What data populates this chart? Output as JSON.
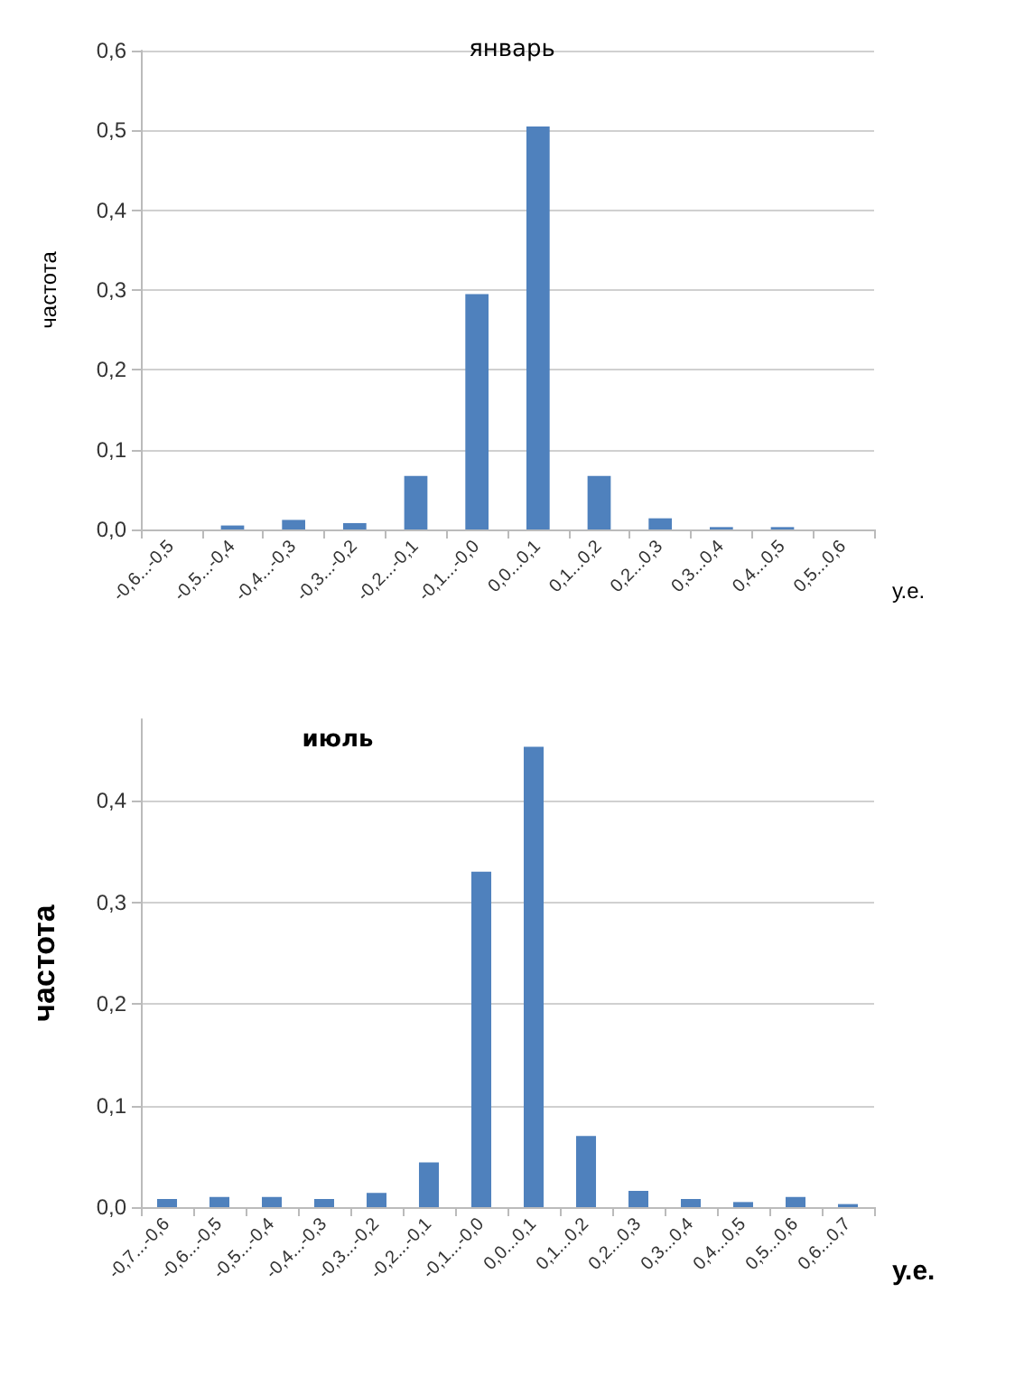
{
  "chart_data": [
    {
      "type": "bar",
      "title": "январь",
      "xlabel": "у.е.",
      "ylabel": "частота",
      "categories": [
        "-0,6...-0,5",
        "-0,5...-0,4",
        "-0,4...-0,3",
        "-0,3...-0,2",
        "-0,2...-0,1",
        "-0,1...-0,0",
        "0,0...0,1",
        "0,1...0,2",
        "0,2...0,3",
        "0,3...0,4",
        "0,4...0,5",
        "0,5...0,6"
      ],
      "values": [
        0,
        0.005,
        0.012,
        0.008,
        0.067,
        0.295,
        0.505,
        0.067,
        0.014,
        0.003,
        0.003,
        0
      ],
      "color": "#4f81bd",
      "ylim": [
        0,
        0.6
      ],
      "yticks": [
        {
          "value": 0,
          "label": "0,0"
        },
        {
          "value": 0.1,
          "label": "0,1"
        },
        {
          "value": 0.2,
          "label": "0,2"
        },
        {
          "value": 0.3,
          "label": "0,3"
        },
        {
          "value": 0.4,
          "label": "0,4"
        },
        {
          "value": 0.5,
          "label": "0,5"
        },
        {
          "value": 0.6,
          "label": "0,6"
        }
      ],
      "grid": "y"
    },
    {
      "type": "bar",
      "title": "июль",
      "xlabel": "у.е.",
      "ylabel": "частота",
      "categories": [
        "-0,7...-0,6",
        "-0,6...-0,5",
        "-0,5...-0,4",
        "-0,4...-0,3",
        "-0,3...-0,2",
        "-0,2...-0,1",
        "-0,1...-0,0",
        "0,0...0,1",
        "0,1...0,2",
        "0,2...0,3",
        "0,3...0,4",
        "0,4...0,5",
        "0,5...0,6",
        "0,6...0,7"
      ],
      "values": [
        0.008,
        0.01,
        0.01,
        0.008,
        0.014,
        0.044,
        0.33,
        0.453,
        0.07,
        0.016,
        0.008,
        0.005,
        0.01,
        0.003
      ],
      "color": "#4f81bd",
      "ylim": [
        0,
        0.48
      ],
      "yticks": [
        {
          "value": 0,
          "label": "0,0"
        },
        {
          "value": 0.1,
          "label": "0,1"
        },
        {
          "value": 0.2,
          "label": "0,2"
        },
        {
          "value": 0.3,
          "label": "0,3"
        },
        {
          "value": 0.4,
          "label": "0,4"
        }
      ],
      "grid": "y"
    }
  ]
}
